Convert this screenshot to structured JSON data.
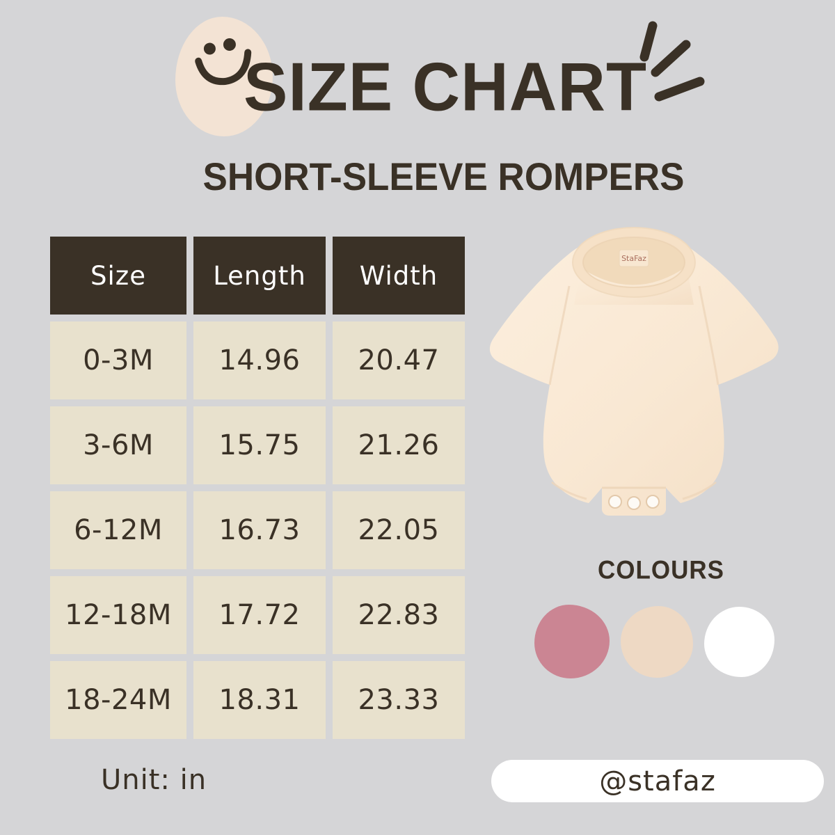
{
  "page": {
    "background_color": "#d5d5d7",
    "accent_dark": "#3a3126"
  },
  "header": {
    "title": "SIZE CHART",
    "subtitle": "SHORT-SLEEVE ROMPERS",
    "smiley_icon": "smiley-face-icon",
    "sparkle_icon": "sparkle-dashes-icon"
  },
  "table": {
    "columns": [
      "Size",
      "Length",
      "Width"
    ],
    "rows": [
      {
        "size": "0-3M",
        "length": "14.96",
        "width": "20.47"
      },
      {
        "size": "3-6M",
        "length": "15.75",
        "width": "21.26"
      },
      {
        "size": "6-12M",
        "length": "16.73",
        "width": "22.05"
      },
      {
        "size": "12-18M",
        "length": "17.72",
        "width": "22.83"
      },
      {
        "size": "18-24M",
        "length": "18.31",
        "width": "23.33"
      }
    ],
    "unit_label": "Unit: in",
    "header_bg": "#3a3126",
    "header_text_color": "#ffffff",
    "cell_bg": "#e8e1cd"
  },
  "product": {
    "description": "cream short-sleeve bubble romper with snap crotch",
    "tag_label": "StaFaz",
    "fabric_color": "#f9e8d3"
  },
  "colours": {
    "label": "COLOURS",
    "swatches": [
      {
        "name": "pink",
        "hex": "#cb8593"
      },
      {
        "name": "beige",
        "hex": "#eed9c4"
      },
      {
        "name": "white",
        "hex": "#ffffff"
      }
    ]
  },
  "footer": {
    "handle": "@stafaz"
  }
}
